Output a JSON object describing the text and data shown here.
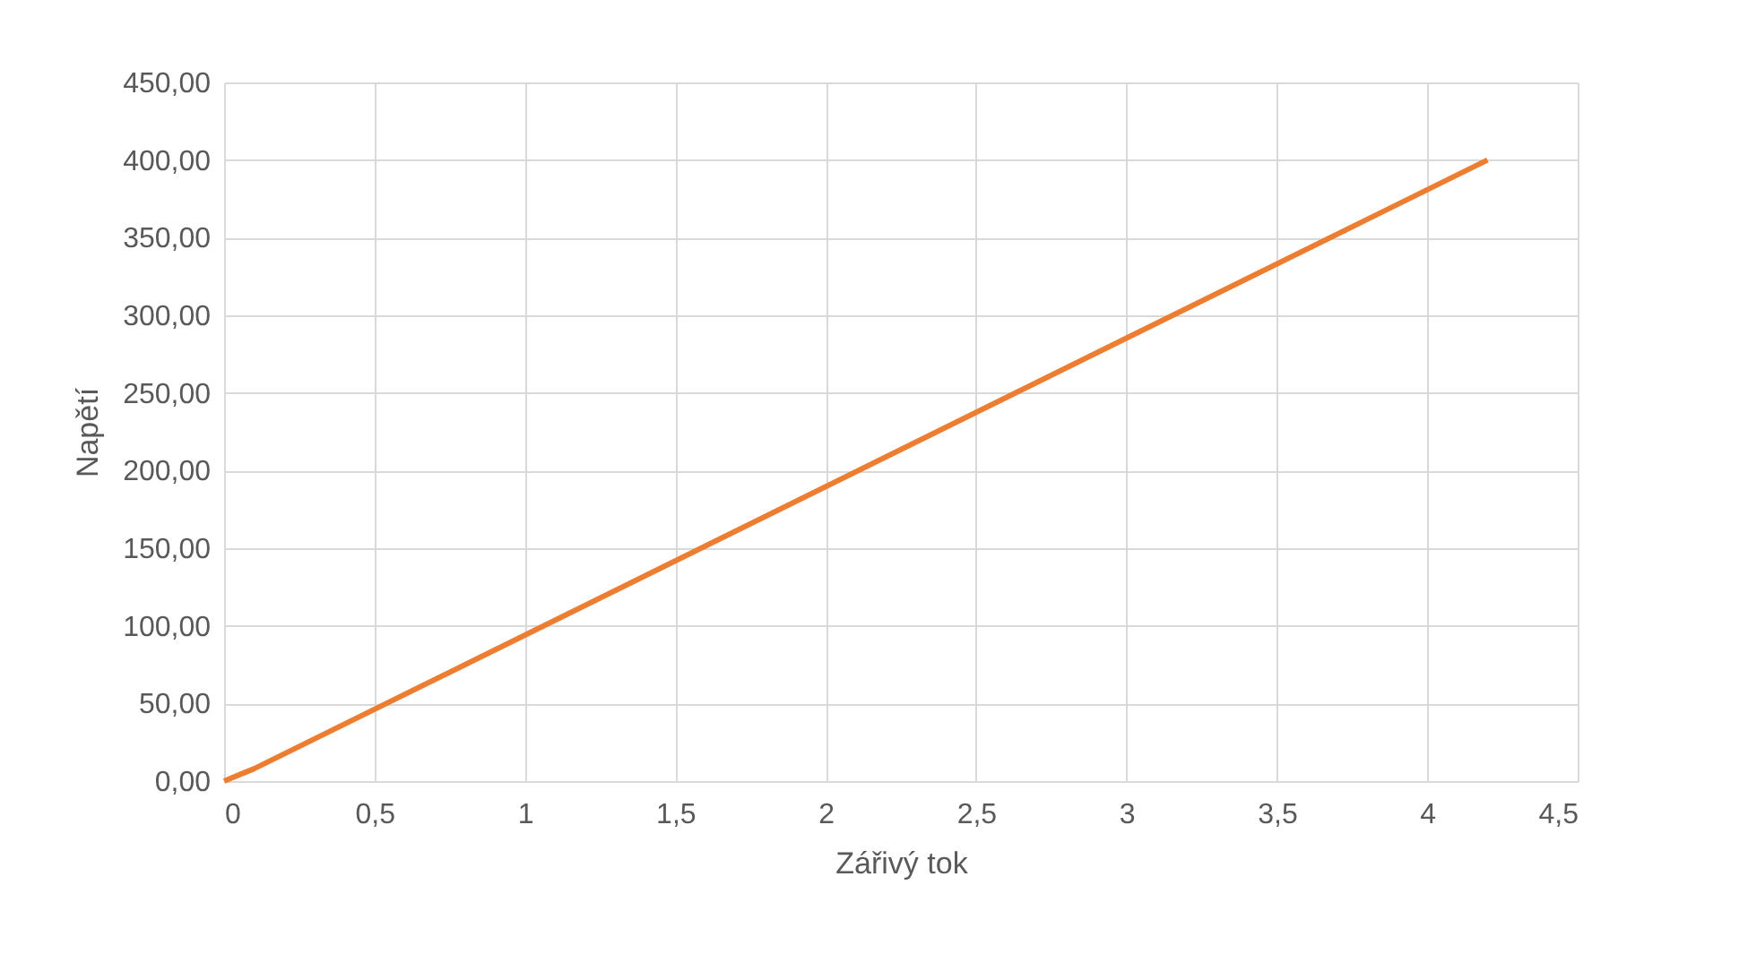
{
  "chart_data": {
    "type": "line",
    "xlabel": "Zářivý tok",
    "ylabel": "Napětí",
    "x": [
      0,
      0.1,
      4.2
    ],
    "series": [
      {
        "color": "#ed7d31",
        "values": [
          0,
          8,
          400
        ]
      }
    ],
    "xlim": [
      0,
      4.5
    ],
    "ylim": [
      0,
      450
    ],
    "xticks": [
      0,
      {
        "value": 0.5,
        "label": "0,5"
      },
      1,
      {
        "value": 1.5,
        "label": "1,5"
      },
      2,
      {
        "value": 2.5,
        "label": "2,5"
      },
      3,
      {
        "value": 3.5,
        "label": "3,5"
      },
      4,
      {
        "value": 4.5,
        "label": "4,5"
      }
    ],
    "yticks": [
      {
        "value": 0,
        "label": "0,00"
      },
      {
        "value": 50,
        "label": "50,00"
      },
      {
        "value": 100,
        "label": "100,00"
      },
      {
        "value": 150,
        "label": "150,00"
      },
      {
        "value": 200,
        "label": "200,00"
      },
      {
        "value": 250,
        "label": "250,00"
      },
      {
        "value": 300,
        "label": "300,00"
      },
      {
        "value": 350,
        "label": "350,00"
      },
      {
        "value": 400,
        "label": "400,00"
      },
      {
        "value": 450,
        "label": "450,00"
      }
    ],
    "grid": true,
    "legend": false,
    "marker": "none",
    "line_style": "solid"
  }
}
